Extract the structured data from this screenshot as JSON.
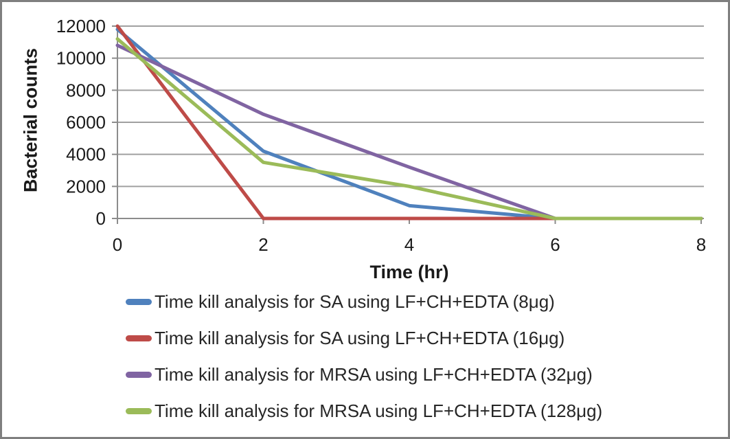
{
  "figure": {
    "background": "#ffffff",
    "border_color": "#7f7f7f"
  },
  "chart_data": {
    "type": "line",
    "title": "",
    "xlabel": "Time (hr)",
    "ylabel": "Bacterial counts",
    "x": [
      0,
      2,
      4,
      6,
      8
    ],
    "x_tick_labels": [
      "0",
      "2",
      "4",
      "6",
      "8"
    ],
    "y_ticks": [
      0,
      2000,
      4000,
      6000,
      8000,
      10000,
      12000
    ],
    "y_tick_labels": [
      "0",
      "2000",
      "4000",
      "6000",
      "8000",
      "10000",
      "12000"
    ],
    "xlim": [
      0,
      8
    ],
    "ylim": [
      0,
      12000
    ],
    "grid": "horizontal",
    "legend_position": "bottom-left",
    "series": [
      {
        "name": "Time kill analysis for SA using LF+CH+EDTA (8μg)",
        "color": "#4F81BD",
        "values": [
          11800,
          4200,
          800,
          0,
          0
        ]
      },
      {
        "name": "Time kill analysis for SA using LF+CH+EDTA (16μg)",
        "color": "#BE4B48",
        "values": [
          12000,
          0,
          0,
          0,
          0
        ]
      },
      {
        "name": "Time kill analysis for MRSA using LF+CH+EDTA (32μg)",
        "color": "#8064A2",
        "values": [
          10800,
          6500,
          3200,
          0,
          0
        ]
      },
      {
        "name": "Time kill analysis for MRSA using LF+CH+EDTA (128μg)",
        "color": "#9BBB59",
        "values": [
          11200,
          3500,
          2000,
          0,
          0
        ]
      }
    ],
    "style": {
      "gridline_color": "#A0A0A0",
      "axis_color": "#8C8C8C",
      "tick_text_color": "#1a1a1a",
      "line_width": 5
    }
  }
}
